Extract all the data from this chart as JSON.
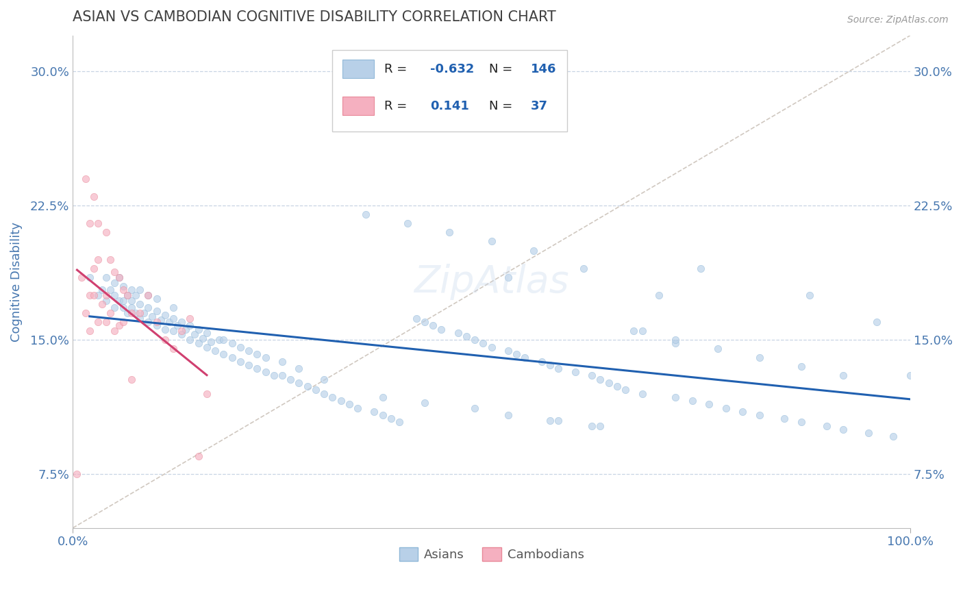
{
  "title": "ASIAN VS CAMBODIAN COGNITIVE DISABILITY CORRELATION CHART",
  "source": "Source: ZipAtlas.com",
  "ylabel": "Cognitive Disability",
  "xlim": [
    0.0,
    1.0
  ],
  "ylim": [
    0.045,
    0.32
  ],
  "yticks": [
    0.075,
    0.15,
    0.225,
    0.3
  ],
  "ytick_labels": [
    "7.5%",
    "15.0%",
    "22.5%",
    "30.0%"
  ],
  "xticks": [
    0.0,
    1.0
  ],
  "xtick_labels": [
    "0.0%",
    "100.0%"
  ],
  "asian_color": "#b8d0e8",
  "asian_edge": "#90b8d8",
  "cambodian_color": "#f5b0c0",
  "cambodian_edge": "#e88898",
  "trend_asian_color": "#2060b0",
  "trend_cambodian_color": "#d04070",
  "ref_line_color": "#d0c8c0",
  "legend_asian_R": "-0.632",
  "legend_asian_N": "146",
  "legend_cambodian_R": "0.141",
  "legend_cambodian_N": "37",
  "legend_label_asian": "Asians",
  "legend_label_cambodian": "Cambodians",
  "background_color": "#ffffff",
  "grid_color": "#c8d4e4",
  "title_color": "#404040",
  "axis_label_color": "#4878b0",
  "tick_color": "#4878b0",
  "marker_size": 55,
  "marker_alpha": 0.65,
  "trend_lw": 2.2,
  "asian_x": [
    0.02,
    0.03,
    0.035,
    0.04,
    0.04,
    0.045,
    0.05,
    0.05,
    0.05,
    0.055,
    0.055,
    0.06,
    0.06,
    0.06,
    0.065,
    0.065,
    0.07,
    0.07,
    0.07,
    0.075,
    0.075,
    0.08,
    0.08,
    0.08,
    0.085,
    0.09,
    0.09,
    0.09,
    0.095,
    0.1,
    0.1,
    0.1,
    0.105,
    0.11,
    0.11,
    0.115,
    0.12,
    0.12,
    0.12,
    0.125,
    0.13,
    0.13,
    0.135,
    0.14,
    0.14,
    0.145,
    0.15,
    0.15,
    0.155,
    0.16,
    0.16,
    0.165,
    0.17,
    0.175,
    0.18,
    0.18,
    0.19,
    0.19,
    0.2,
    0.2,
    0.21,
    0.21,
    0.22,
    0.22,
    0.23,
    0.23,
    0.24,
    0.25,
    0.25,
    0.26,
    0.27,
    0.27,
    0.28,
    0.29,
    0.3,
    0.3,
    0.31,
    0.32,
    0.33,
    0.34,
    0.35,
    0.36,
    0.37,
    0.38,
    0.39,
    0.4,
    0.41,
    0.42,
    0.43,
    0.44,
    0.45,
    0.46,
    0.47,
    0.48,
    0.49,
    0.5,
    0.5,
    0.52,
    0.53,
    0.54,
    0.55,
    0.56,
    0.57,
    0.58,
    0.6,
    0.61,
    0.62,
    0.63,
    0.64,
    0.65,
    0.66,
    0.68,
    0.7,
    0.72,
    0.74,
    0.75,
    0.76,
    0.78,
    0.8,
    0.82,
    0.85,
    0.87,
    0.88,
    0.9,
    0.92,
    0.95,
    0.96,
    0.98,
    1.0,
    0.37,
    0.42,
    0.48,
    0.52,
    0.58,
    0.63,
    0.68,
    0.72,
    0.52,
    0.57,
    0.62,
    0.67,
    0.72,
    0.77,
    0.82,
    0.87,
    0.92
  ],
  "asian_y": [
    0.185,
    0.175,
    0.178,
    0.172,
    0.185,
    0.178,
    0.175,
    0.168,
    0.182,
    0.172,
    0.185,
    0.168,
    0.172,
    0.18,
    0.165,
    0.175,
    0.168,
    0.172,
    0.178,
    0.165,
    0.175,
    0.162,
    0.17,
    0.178,
    0.165,
    0.16,
    0.168,
    0.175,
    0.163,
    0.158,
    0.166,
    0.173,
    0.161,
    0.156,
    0.164,
    0.16,
    0.155,
    0.162,
    0.168,
    0.158,
    0.153,
    0.16,
    0.156,
    0.15,
    0.158,
    0.153,
    0.148,
    0.156,
    0.151,
    0.146,
    0.154,
    0.149,
    0.144,
    0.15,
    0.142,
    0.15,
    0.14,
    0.148,
    0.138,
    0.146,
    0.136,
    0.144,
    0.134,
    0.142,
    0.132,
    0.14,
    0.13,
    0.13,
    0.138,
    0.128,
    0.126,
    0.134,
    0.124,
    0.122,
    0.12,
    0.128,
    0.118,
    0.116,
    0.114,
    0.112,
    0.22,
    0.11,
    0.108,
    0.106,
    0.104,
    0.215,
    0.162,
    0.16,
    0.158,
    0.156,
    0.21,
    0.154,
    0.152,
    0.15,
    0.148,
    0.205,
    0.146,
    0.144,
    0.142,
    0.14,
    0.2,
    0.138,
    0.136,
    0.134,
    0.132,
    0.19,
    0.13,
    0.128,
    0.126,
    0.124,
    0.122,
    0.12,
    0.175,
    0.118,
    0.116,
    0.19,
    0.114,
    0.112,
    0.11,
    0.108,
    0.106,
    0.104,
    0.175,
    0.102,
    0.1,
    0.098,
    0.16,
    0.096,
    0.13,
    0.118,
    0.115,
    0.112,
    0.108,
    0.105,
    0.102,
    0.155,
    0.148,
    0.185,
    0.105,
    0.102,
    0.155,
    0.15,
    0.145,
    0.14,
    0.135,
    0.13
  ],
  "cambodian_x": [
    0.005,
    0.01,
    0.015,
    0.015,
    0.02,
    0.02,
    0.02,
    0.025,
    0.025,
    0.025,
    0.03,
    0.03,
    0.03,
    0.035,
    0.04,
    0.04,
    0.04,
    0.045,
    0.045,
    0.05,
    0.05,
    0.055,
    0.055,
    0.06,
    0.06,
    0.065,
    0.07,
    0.07,
    0.08,
    0.09,
    0.1,
    0.11,
    0.12,
    0.13,
    0.14,
    0.15,
    0.16
  ],
  "cambodian_y": [
    0.075,
    0.185,
    0.165,
    0.24,
    0.155,
    0.175,
    0.215,
    0.175,
    0.19,
    0.23,
    0.16,
    0.195,
    0.215,
    0.17,
    0.16,
    0.175,
    0.21,
    0.165,
    0.195,
    0.155,
    0.188,
    0.158,
    0.185,
    0.16,
    0.178,
    0.175,
    0.128,
    0.165,
    0.165,
    0.175,
    0.16,
    0.15,
    0.145,
    0.155,
    0.162,
    0.085,
    0.12
  ]
}
